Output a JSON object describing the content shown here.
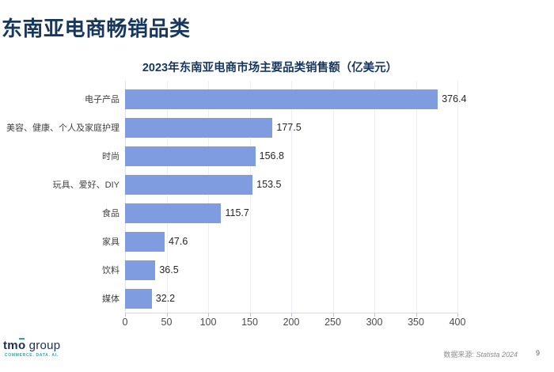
{
  "page": {
    "title": "东南亚电商畅销品类",
    "colors": {
      "title_navy": "#17375E",
      "bar_blue": "#7F9CE0",
      "logo_teal": "#2FA8A2",
      "gridline": "#EFEFF3"
    },
    "footer": {
      "logo": {
        "brand_tm": "tm",
        "brand_o": "o",
        "brand_rest": " group",
        "tagline": "COMMERCE. DATA. AI."
      },
      "source_prefix": "数据来源:",
      "source_name": "Statista 2024",
      "page_number": "9"
    }
  },
  "chart_data": {
    "type": "bar",
    "orientation": "horizontal",
    "title": "2023年东南亚电商市场主要品类销售额（亿美元）",
    "categories": [
      "电子产品",
      "美容、健康、个人及家庭护理",
      "时尚",
      "玩具、爱好、DIY",
      "食品",
      "家具",
      "饮料",
      "媒体"
    ],
    "values": [
      376.4,
      177.5,
      156.8,
      153.5,
      115.7,
      47.6,
      36.5,
      32.2
    ],
    "xlabel": "",
    "ylabel": "",
    "xlim": [
      0,
      400
    ],
    "x_ticks": [
      0,
      50,
      100,
      150,
      200,
      250,
      300,
      350,
      400
    ],
    "grid": "vertical",
    "legend": "none",
    "bar_color": "#7F9CE0"
  }
}
